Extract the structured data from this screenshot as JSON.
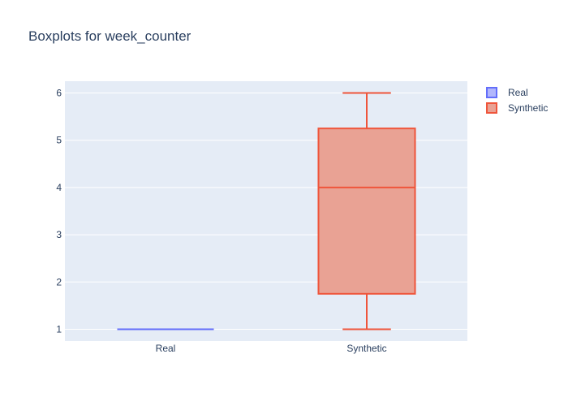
{
  "chart_data": {
    "type": "box",
    "title": "Boxplots for week_counter",
    "xlabel": "",
    "ylabel": "",
    "categories": [
      "Real",
      "Synthetic"
    ],
    "ylim": [
      0.75,
      6.25
    ],
    "yticks": [
      1,
      2,
      3,
      4,
      5,
      6
    ],
    "grid": true,
    "legend_position": "top-right",
    "series": [
      {
        "name": "Real",
        "color": "#636efa",
        "fill": "#b1b6fc",
        "stats": {
          "min": 1,
          "q1": 1,
          "median": 1,
          "q3": 1,
          "max": 1
        }
      },
      {
        "name": "Synthetic",
        "color": "#ef553b",
        "fill": "#e9a294",
        "stats": {
          "min": 1,
          "q1": 1.75,
          "median": 4,
          "q3": 5.25,
          "max": 6
        }
      }
    ],
    "plot_bg": "#e5ecf6",
    "grid_color": "#ffffff",
    "text_color": "#2a3f5f"
  }
}
